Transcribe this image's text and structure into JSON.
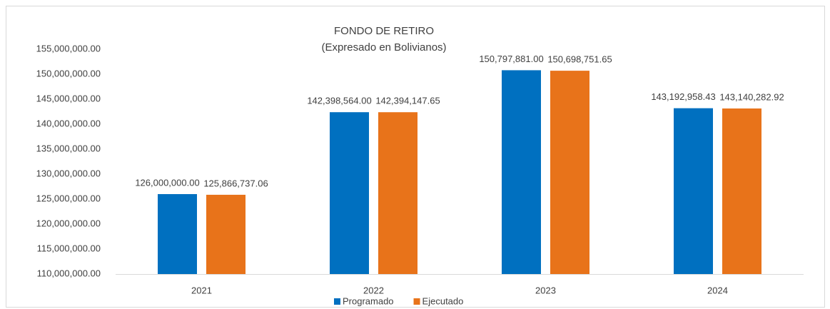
{
  "chart_data": {
    "type": "bar",
    "title": "FONDO DE RETIRO",
    "subtitle": "(Expresado en Bolivianos)",
    "categories": [
      "2021",
      "2022",
      "2023",
      "2024"
    ],
    "series": [
      {
        "name": "Programado",
        "color": "#0070c0",
        "values": [
          126000000.0,
          142398564.0,
          150797881.0,
          143192958.43
        ],
        "value_labels": [
          "126,000,000.00",
          "142,398,564.00",
          "150,797,881.00",
          "143,192,958.43"
        ]
      },
      {
        "name": "Ejecutado",
        "color": "#e8731a",
        "values": [
          125866737.06,
          142394147.65,
          150698751.65,
          143140282.92
        ],
        "value_labels": [
          "125,866,737.06",
          "142,394,147.65",
          "150,698,751.65",
          "143,140,282.92"
        ]
      }
    ],
    "ylim": [
      110000000,
      155000000
    ],
    "yticks": [
      {
        "value": 110000000,
        "label": "110,000,000.00"
      },
      {
        "value": 115000000,
        "label": "115,000,000.00"
      },
      {
        "value": 120000000,
        "label": "120,000,000.00"
      },
      {
        "value": 125000000,
        "label": "125,000,000.00"
      },
      {
        "value": 130000000,
        "label": "130,000,000.00"
      },
      {
        "value": 135000000,
        "label": "135,000,000.00"
      },
      {
        "value": 140000000,
        "label": "140,000,000.00"
      },
      {
        "value": 145000000,
        "label": "145,000,000.00"
      },
      {
        "value": 150000000,
        "label": "150,000,000.00"
      },
      {
        "value": 155000000,
        "label": "155,000,000.00"
      }
    ],
    "grid": false,
    "legend": "bottom"
  }
}
